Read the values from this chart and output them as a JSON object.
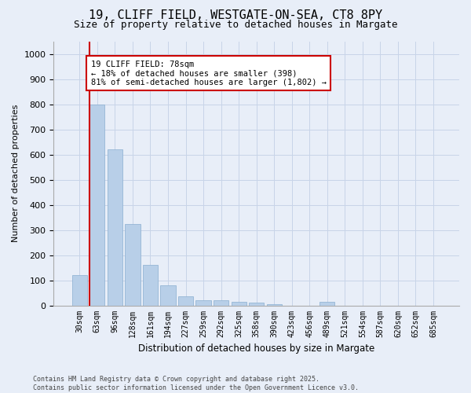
{
  "title_line1": "19, CLIFF FIELD, WESTGATE-ON-SEA, CT8 8PY",
  "title_line2": "Size of property relative to detached houses in Margate",
  "xlabel": "Distribution of detached houses by size in Margate",
  "ylabel": "Number of detached properties",
  "categories": [
    "30sqm",
    "63sqm",
    "96sqm",
    "128sqm",
    "161sqm",
    "194sqm",
    "227sqm",
    "259sqm",
    "292sqm",
    "325sqm",
    "358sqm",
    "390sqm",
    "423sqm",
    "456sqm",
    "489sqm",
    "521sqm",
    "554sqm",
    "587sqm",
    "620sqm",
    "652sqm",
    "685sqm"
  ],
  "values": [
    120,
    800,
    620,
    325,
    160,
    80,
    35,
    22,
    20,
    15,
    10,
    5,
    0,
    0,
    14,
    0,
    0,
    0,
    0,
    0,
    0
  ],
  "bar_color": "#b8cfe8",
  "bar_edge_color": "#8aaed0",
  "vline_color": "#cc0000",
  "annotation_line1": "19 CLIFF FIELD: 78sqm",
  "annotation_line2": "← 18% of detached houses are smaller (398)",
  "annotation_line3": "81% of semi-detached houses are larger (1,802) →",
  "annotation_box_color": "#cc0000",
  "annotation_facecolor": "#ffffff",
  "ylim": [
    0,
    1050
  ],
  "yticks": [
    0,
    100,
    200,
    300,
    400,
    500,
    600,
    700,
    800,
    900,
    1000
  ],
  "grid_color": "#c8d4e8",
  "bg_color": "#e8eef8",
  "footer_text": "Contains HM Land Registry data © Crown copyright and database right 2025.\nContains public sector information licensed under the Open Government Licence v3.0.",
  "title_fontsize": 11,
  "subtitle_fontsize": 9,
  "annotation_fontsize": 7.5,
  "footer_fontsize": 6,
  "ylabel_fontsize": 8,
  "xlabel_fontsize": 8.5,
  "ytick_fontsize": 8,
  "xtick_fontsize": 7
}
